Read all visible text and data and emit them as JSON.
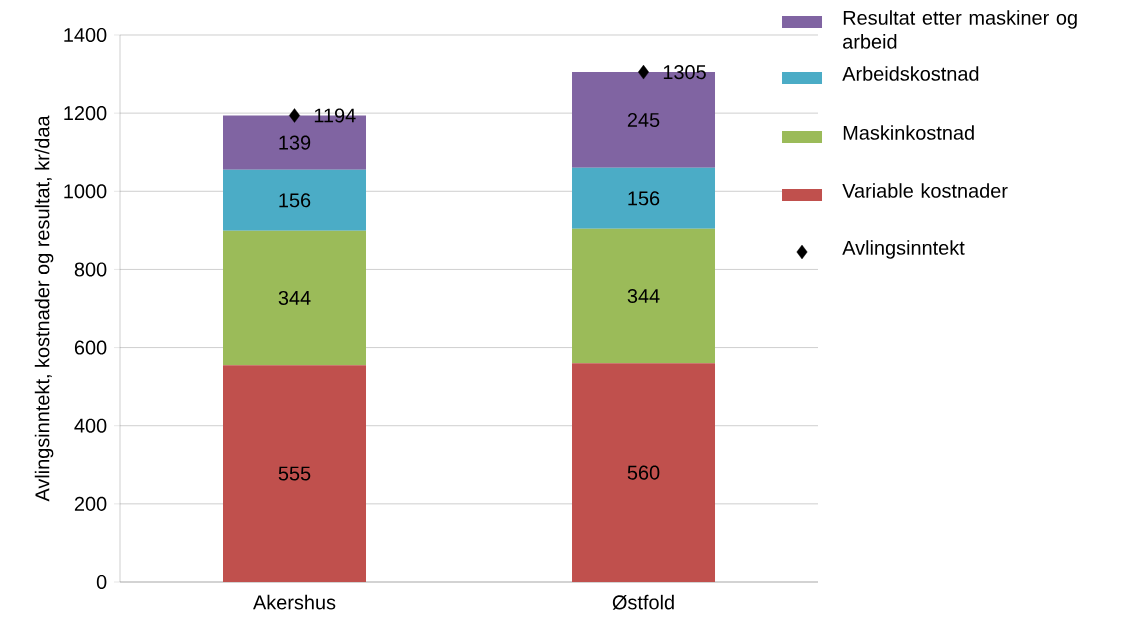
{
  "chart_data": {
    "type": "bar",
    "stacked": true,
    "ylabel": "Avlingsinntekt, kostnader  og resultat, kr/daa",
    "categories": [
      "Akershus",
      "Østfold"
    ],
    "ylim": [
      0,
      1400
    ],
    "yticks": [
      0,
      200,
      400,
      600,
      800,
      1000,
      1200,
      1400
    ],
    "grid": "y",
    "legend": "right",
    "data_labels": true,
    "series": [
      {
        "name": "Variable kostnader",
        "color": "#c0504d",
        "values": [
          555,
          560
        ]
      },
      {
        "name": "Maskinkostnad",
        "color": "#9bbb59",
        "values": [
          344,
          344
        ]
      },
      {
        "name": "Arbeidskostnad",
        "color": "#4bacc6",
        "values": [
          156,
          156
        ]
      },
      {
        "name": "Resultat etter maskiner og arbeid",
        "color": "#8064a2",
        "values": [
          139,
          245
        ]
      },
      {
        "name": "Avlingsinntekt",
        "type": "scatter",
        "marker": "diamond",
        "color": "#000000",
        "values": [
          1194,
          1305
        ]
      }
    ]
  }
}
